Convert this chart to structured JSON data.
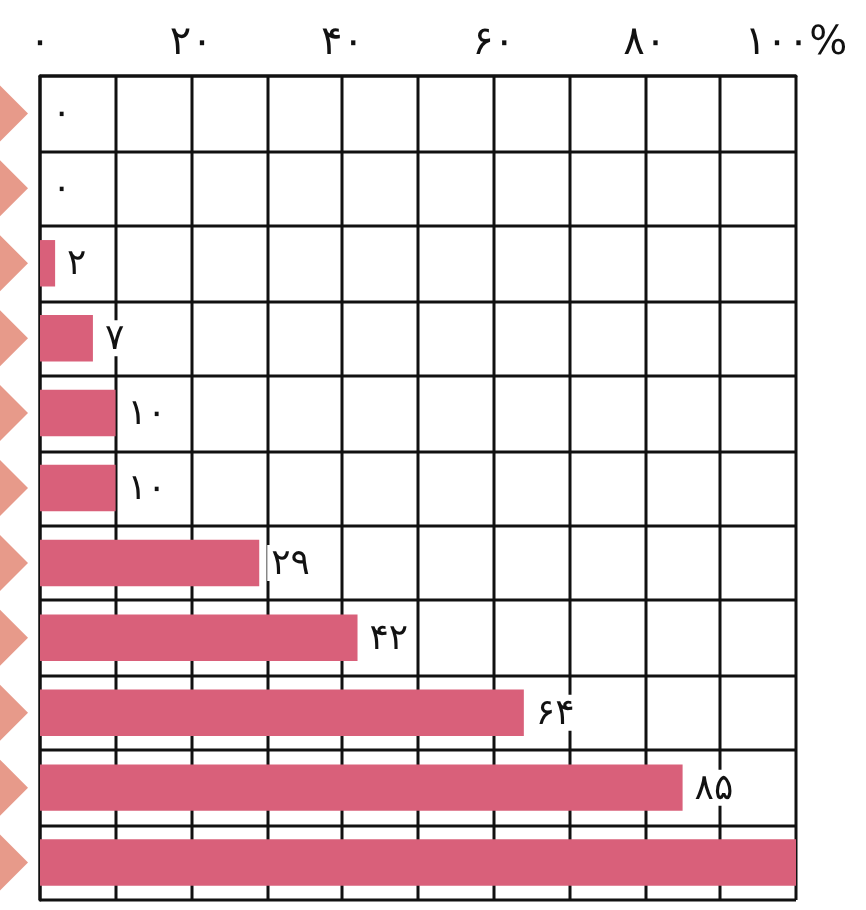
{
  "chart_data": {
    "type": "bar",
    "orientation": "horizontal",
    "categories": [
      null,
      null,
      null,
      null,
      null,
      null,
      null,
      null,
      null,
      null,
      null
    ],
    "values": [
      0,
      0,
      2,
      7,
      10,
      10,
      29,
      42,
      64,
      85,
      100
    ],
    "value_labels": [
      "۰",
      "۰",
      "۲",
      "۷",
      "۱۰",
      "۱۰",
      "۲۹",
      "۴۲",
      "۶۴",
      "۸۵",
      null
    ],
    "color": "#d9607a",
    "xlim": [
      0,
      100
    ],
    "xticks": [
      {
        "value": 0,
        "label": "۰"
      },
      {
        "value": 10,
        "label": null
      },
      {
        "value": 20,
        "label": "۲۰"
      },
      {
        "value": 30,
        "label": null
      },
      {
        "value": 40,
        "label": "۴۰"
      },
      {
        "value": 50,
        "label": null
      },
      {
        "value": 60,
        "label": "۶۰"
      },
      {
        "value": 70,
        "label": null
      },
      {
        "value": 80,
        "label": "۸۰"
      },
      {
        "value": 90,
        "label": null
      },
      {
        "value": 100,
        "label": "۱۰۰%"
      }
    ],
    "grid": true
  }
}
